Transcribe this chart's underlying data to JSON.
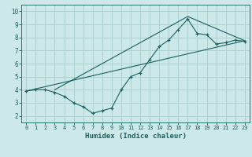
{
  "title": "",
  "xlabel": "Humidex (Indice chaleur)",
  "bg_color": "#cce8e8",
  "grid_color": "#aacccc",
  "line_color": "#1a6060",
  "xlim": [
    -0.5,
    23.5
  ],
  "ylim": [
    1.5,
    10.5
  ],
  "xticks": [
    0,
    1,
    2,
    3,
    4,
    5,
    6,
    7,
    8,
    9,
    10,
    11,
    12,
    13,
    14,
    15,
    16,
    17,
    18,
    19,
    20,
    21,
    22,
    23
  ],
  "yticks": [
    2,
    3,
    4,
    5,
    6,
    7,
    8,
    9,
    10
  ],
  "line1_x": [
    0,
    1,
    2,
    3,
    4,
    5,
    6,
    7,
    8,
    9,
    10,
    11,
    12,
    13,
    14,
    15,
    16,
    17,
    18,
    19,
    20,
    21,
    22,
    23
  ],
  "line1_y": [
    3.9,
    4.0,
    4.0,
    3.8,
    3.5,
    3.0,
    2.7,
    2.2,
    2.4,
    2.6,
    4.0,
    5.0,
    5.3,
    6.3,
    7.3,
    7.8,
    8.6,
    9.4,
    8.3,
    8.2,
    7.5,
    7.6,
    7.8,
    7.7
  ],
  "line2_x": [
    0,
    23
  ],
  "line2_y": [
    3.9,
    7.75
  ],
  "line3_x": [
    3,
    17,
    23
  ],
  "line3_y": [
    4.0,
    9.6,
    7.75
  ]
}
